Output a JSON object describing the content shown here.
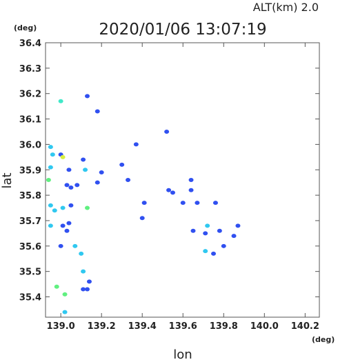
{
  "chart_data": {
    "type": "scatter",
    "title": "2020/01/06 13:07:19",
    "subtitle": "ALT(km) 2.0",
    "x_unit": "(deg)",
    "y_unit": "(deg)",
    "x_label": "lon",
    "y_label": "lat",
    "xlim": [
      138.925,
      140.27
    ],
    "ylim": [
      35.32,
      36.4
    ],
    "xticks": [
      {
        "value": 139,
        "label": "139.0"
      },
      139.2,
      139.4,
      139.6,
      139.8,
      {
        "value": 140,
        "label": "140.0"
      },
      140.2
    ],
    "yticks": [
      35.4,
      35.5,
      35.6,
      35.7,
      35.8,
      35.9,
      {
        "value": 36,
        "label": "36.0"
      },
      36.1,
      36.2,
      36.3,
      36.4
    ],
    "x": [
      139.0,
      139.13,
      139.18,
      138.95,
      138.96,
      139.0,
      139.01,
      139.11,
      138.95,
      139.04,
      139.12,
      138.94,
      139.03,
      139.05,
      139.08,
      139.18,
      139.2,
      139.3,
      139.33,
      139.37,
      139.52,
      139.53,
      139.55,
      139.64,
      139.64,
      139.6,
      139.67,
      139.41,
      139.76,
      139.4,
      138.95,
      138.97,
      139.01,
      139.05,
      139.13,
      138.95,
      139.01,
      139.04,
      139.03,
      139.0,
      139.07,
      139.1,
      139.11,
      139.14,
      139.13,
      138.98,
      139.02,
      139.11,
      139.02,
      139.65,
      139.71,
      139.72,
      139.78,
      139.85,
      139.87,
      139.8,
      139.71,
      139.75
    ],
    "values": [
      36.17,
      36.19,
      36.13,
      35.99,
      35.96,
      35.96,
      35.95,
      35.94,
      35.91,
      35.9,
      35.9,
      35.86,
      35.84,
      35.83,
      35.84,
      35.85,
      35.89,
      35.92,
      35.86,
      36.0,
      36.05,
      35.82,
      35.81,
      35.86,
      35.82,
      35.77,
      35.77,
      35.77,
      35.77,
      35.71,
      35.76,
      35.74,
      35.75,
      35.76,
      35.75,
      35.68,
      35.68,
      35.69,
      35.66,
      35.6,
      35.6,
      35.57,
      35.5,
      35.46,
      35.43,
      35.44,
      35.41,
      35.43,
      35.34,
      35.66,
      35.65,
      35.68,
      35.66,
      35.64,
      35.68,
      35.6,
      35.58,
      35.57
    ],
    "colors": [
      "#40e8c8",
      "#3050f0",
      "#3050f0",
      "#30c8f0",
      "#30c8f0",
      "#3050f0",
      "#d8f040",
      "#3050f0",
      "#30c8f0",
      "#3050f0",
      "#30c8f0",
      "#60f080",
      "#3050f0",
      "#3050f0",
      "#3050f0",
      "#3050f0",
      "#3050f0",
      "#3050f0",
      "#3050f0",
      "#3050f0",
      "#3050f0",
      "#3050f0",
      "#3050f0",
      "#3050f0",
      "#3050f0",
      "#3050f0",
      "#3050f0",
      "#3050f0",
      "#3050f0",
      "#3050f0",
      "#30c8f0",
      "#30c8f0",
      "#30c8f0",
      "#3050f0",
      "#60f080",
      "#30c8f0",
      "#3050f0",
      "#3050f0",
      "#3050f0",
      "#3050f0",
      "#30c8f0",
      "#30c8f0",
      "#30c8f0",
      "#3050f0",
      "#3050f0",
      "#60f080",
      "#60f080",
      "#3050f0",
      "#30c8f0",
      "#3050f0",
      "#3050f0",
      "#30c8f0",
      "#3050f0",
      "#3050f0",
      "#3050f0",
      "#3050f0",
      "#30c8f0",
      "#3050f0"
    ]
  }
}
